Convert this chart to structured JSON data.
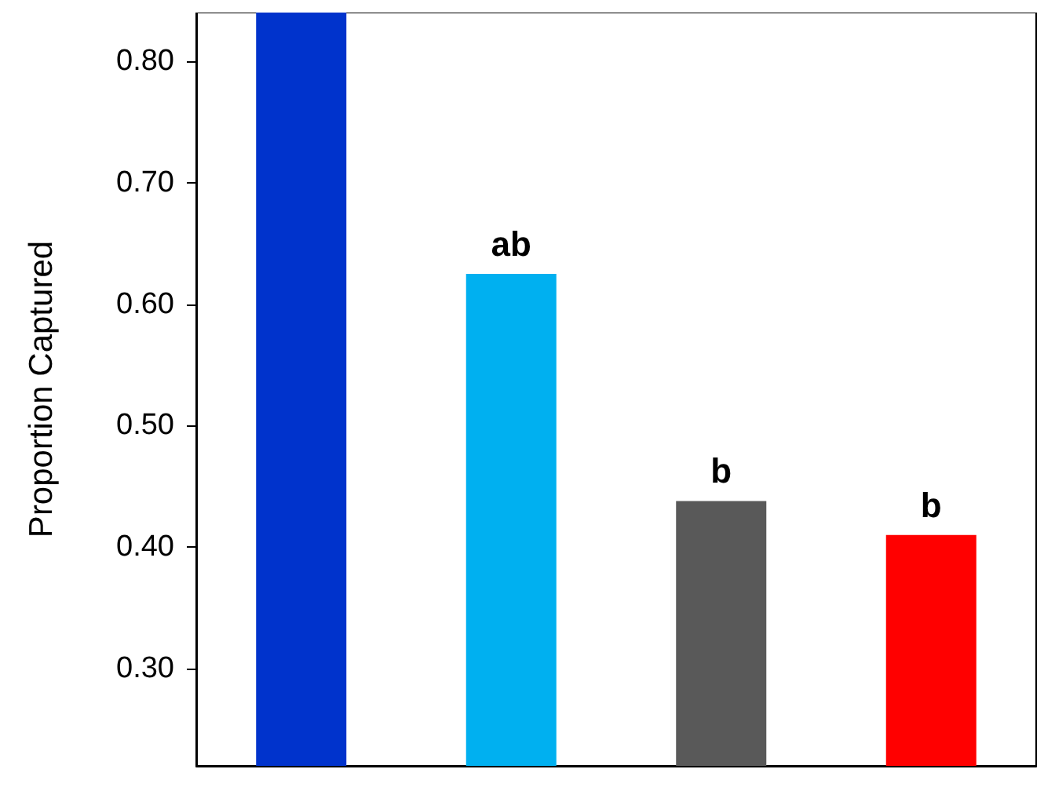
{
  "chart_data": {
    "type": "bar",
    "ylabel": "Proportion Captured",
    "categories": [
      null,
      null,
      null,
      null
    ],
    "values": [
      0.84,
      0.625,
      0.438,
      0.41
    ],
    "colors": [
      "#0033cc",
      "#00b0f0",
      "#595959",
      "#ff0000"
    ],
    "value_labels": [
      null,
      "ab",
      "b",
      "b"
    ],
    "ylim": [
      0.22,
      0.84
    ],
    "yticks": [
      {
        "value": 0.3,
        "label": "0.30"
      },
      {
        "value": 0.4,
        "label": "0.40"
      },
      {
        "value": 0.5,
        "label": "0.50"
      },
      {
        "value": 0.6,
        "label": "0.60"
      },
      {
        "value": 0.7,
        "label": "0.70"
      },
      {
        "value": 0.8,
        "label": "0.80"
      }
    ],
    "grid": false
  }
}
